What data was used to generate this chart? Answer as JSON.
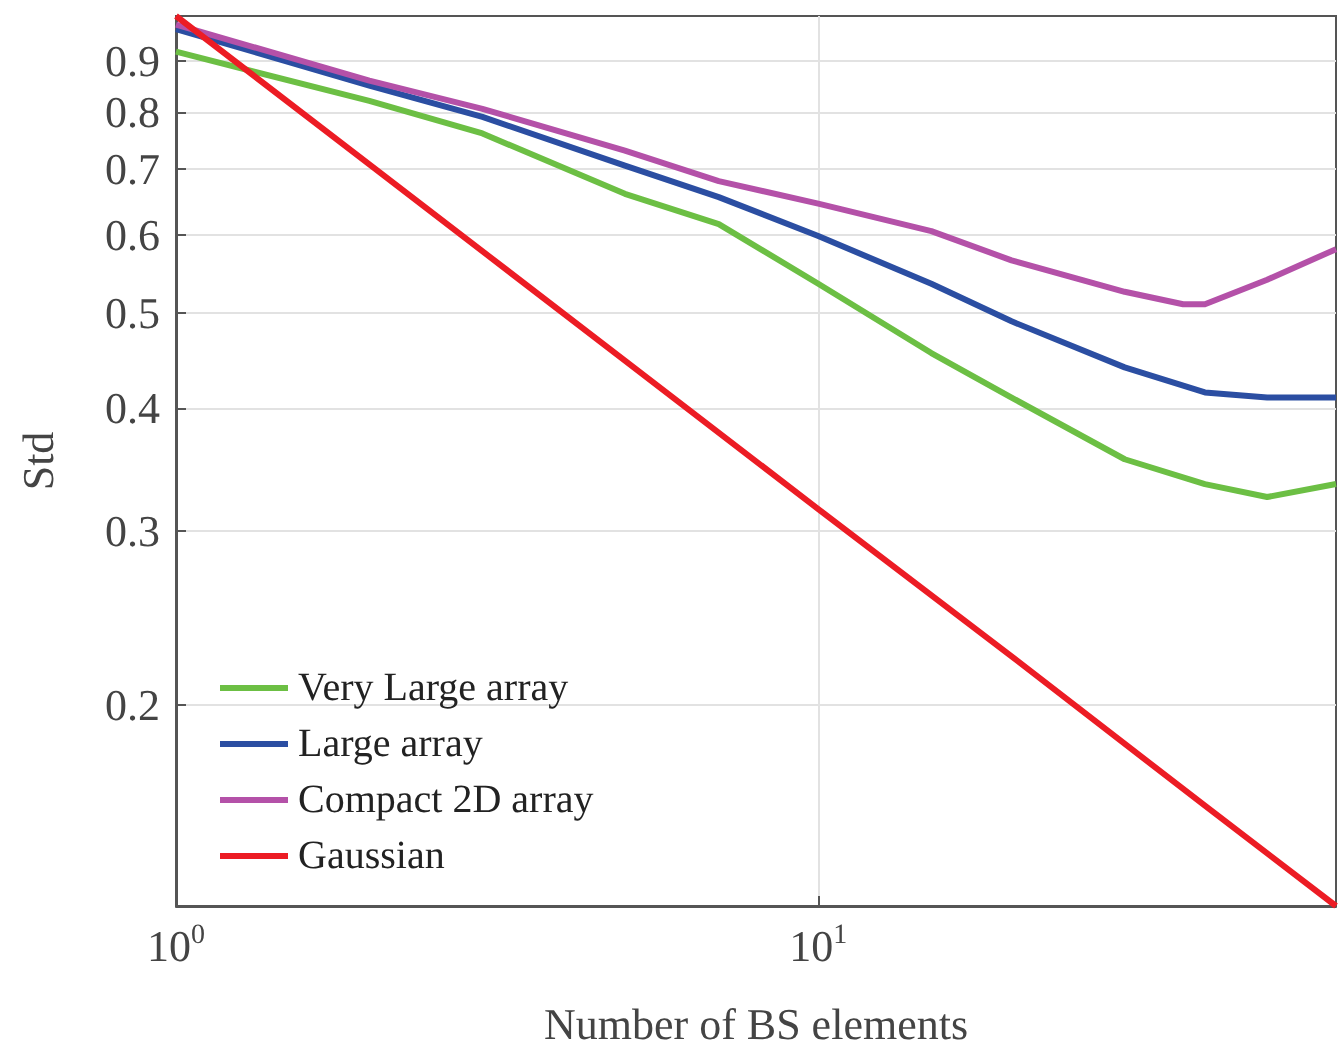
{
  "chart_data": {
    "type": "line",
    "xlabel": "Number of BS elements",
    "ylabel": "Std",
    "log": "xy",
    "xlim": [
      1,
      64
    ],
    "ylim": [
      0.125,
      1
    ],
    "xticks": [
      {
        "value": 1,
        "label": "10$^{0}$"
      },
      {
        "value": 10,
        "label": "10$^{1}$"
      }
    ],
    "yticks": [
      0.2,
      0.3,
      0.4,
      0.5,
      0.6,
      0.7,
      0.8,
      0.9
    ],
    "grid": true,
    "legend": "bottom left",
    "marker": "none",
    "line_style": "solid",
    "series": [
      {
        "name": "Very Large array",
        "color": "#6cbf44",
        "x": [
          1,
          2,
          3,
          5,
          7,
          10,
          15,
          20,
          30,
          40,
          50,
          64
        ],
        "values": [
          0.92,
          0.82,
          0.76,
          0.66,
          0.615,
          0.535,
          0.455,
          0.41,
          0.355,
          0.335,
          0.325,
          0.335
        ]
      },
      {
        "name": "Large array",
        "color": "#2b4ea2",
        "x": [
          1,
          2,
          3,
          5,
          7,
          10,
          15,
          20,
          30,
          40,
          50,
          64
        ],
        "values": [
          0.97,
          0.85,
          0.79,
          0.705,
          0.655,
          0.598,
          0.535,
          0.49,
          0.44,
          0.415,
          0.41,
          0.41
        ]
      },
      {
        "name": "Compact 2D array",
        "color": "#b451a8",
        "x": [
          1,
          2,
          3,
          5,
          7,
          10,
          15,
          20,
          30,
          37,
          40,
          50,
          64
        ],
        "values": [
          0.98,
          0.86,
          0.805,
          0.73,
          0.68,
          0.645,
          0.605,
          0.565,
          0.525,
          0.51,
          0.51,
          0.54,
          0.58
        ]
      },
      {
        "name": "Gaussian",
        "color": "#ec1c24",
        "x": [
          1,
          2,
          5,
          10,
          20,
          40,
          64
        ],
        "values": [
          1,
          0.707,
          0.447,
          0.316,
          0.224,
          0.158,
          0.125
        ]
      }
    ]
  }
}
